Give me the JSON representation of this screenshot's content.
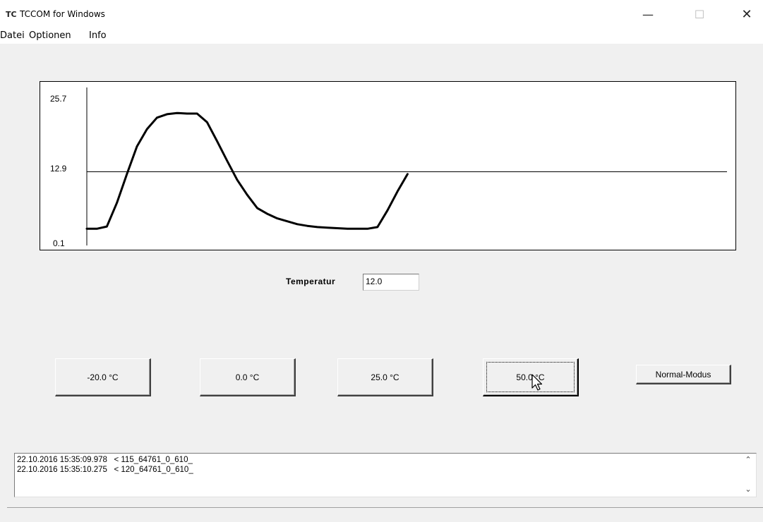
{
  "window": {
    "icon_text": "TC",
    "title": "TCCOM for Windows",
    "min_glyph": "—",
    "max_glyph": "☐",
    "close_glyph": "✕"
  },
  "menu": {
    "items": [
      {
        "label": "Datei"
      },
      {
        "label": "Optionen"
      },
      {
        "label": "Info"
      }
    ]
  },
  "chart_data": {
    "type": "line",
    "title": "",
    "xlabel": "",
    "ylabel": "",
    "ylim": [
      0.1,
      25.7
    ],
    "y_ticks": [
      "25.7",
      "12.9",
      "0.1"
    ],
    "reference_line": 12.9,
    "x": [
      0,
      1,
      2,
      3,
      4,
      5,
      6,
      7,
      8,
      9,
      10,
      11,
      12,
      13,
      14,
      15,
      16,
      17,
      18,
      19,
      20,
      21,
      22,
      23,
      24,
      25,
      26,
      27,
      28,
      29,
      30,
      31,
      32
    ],
    "series": [
      {
        "values": [
          3.0,
          3.0,
          3.4,
          7.5,
          12.5,
          17.3,
          20.3,
          22.3,
          22.9,
          23.1,
          23.0,
          23.0,
          21.5,
          18.2,
          14.8,
          11.5,
          8.9,
          6.6,
          5.6,
          4.8,
          4.3,
          3.8,
          3.5,
          3.3,
          3.2,
          3.1,
          3.0,
          3.0,
          3.0,
          3.3,
          6.2,
          9.5,
          12.5
        ]
      }
    ],
    "line_color": "#000000",
    "grid": false
  },
  "controls": {
    "temperature_label": "Temperatur",
    "temperature_value": "12.0",
    "buttons": {
      "minus20": "-20.0 °C",
      "zero": "0.0 °C",
      "plus25": "25.0 °C",
      "plus50": "50.0 °C",
      "normal_mode": "Normal-Modus"
    }
  },
  "log": {
    "lines": [
      "22.10.2016 15:35:09.978   < 115_64761_0_610_",
      "22.10.2016 15:35:10.275   < 120_64761_0_610_"
    ],
    "scroll_up_glyph": "⌃",
    "scroll_down_glyph": "⌄"
  }
}
